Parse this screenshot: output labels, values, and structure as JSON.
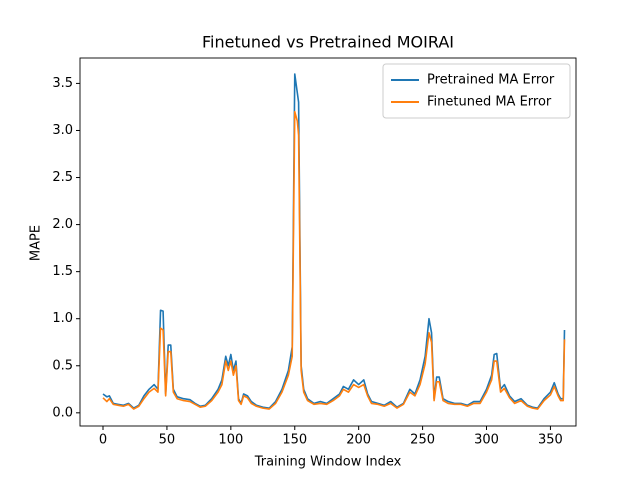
{
  "chart_data": {
    "type": "line",
    "title": "Finetuned vs Pretrained MOIRAI",
    "x_label": "Training Window Index",
    "y_label": "MAPE",
    "x": [
      0,
      3,
      5,
      8,
      12,
      16,
      20,
      24,
      28,
      32,
      36,
      40,
      43,
      45,
      47,
      49,
      51,
      53,
      55,
      58,
      63,
      68,
      72,
      76,
      80,
      85,
      90,
      93,
      96,
      98,
      100,
      102,
      104,
      106,
      108,
      110,
      113,
      116,
      120,
      125,
      130,
      135,
      140,
      145,
      148,
      150,
      152,
      153,
      155,
      157,
      160,
      165,
      170,
      175,
      180,
      185,
      188,
      192,
      196,
      200,
      204,
      207,
      210,
      215,
      220,
      225,
      230,
      235,
      240,
      244,
      248,
      252,
      255,
      257,
      259,
      261,
      263,
      266,
      270,
      275,
      280,
      285,
      290,
      295,
      300,
      304,
      306,
      308,
      311,
      314,
      318,
      322,
      327,
      332,
      336,
      340,
      345,
      350,
      353,
      356,
      358,
      360,
      361
    ],
    "series": [
      {
        "name": "Pretrained MA Error",
        "color": "#1f77b4",
        "values": [
          0.2,
          0.17,
          0.18,
          0.1,
          0.09,
          0.08,
          0.1,
          0.05,
          0.08,
          0.18,
          0.25,
          0.3,
          0.25,
          1.09,
          1.08,
          0.2,
          0.72,
          0.72,
          0.25,
          0.17,
          0.15,
          0.14,
          0.1,
          0.07,
          0.08,
          0.15,
          0.25,
          0.35,
          0.6,
          0.5,
          0.62,
          0.45,
          0.55,
          0.15,
          0.1,
          0.2,
          0.18,
          0.12,
          0.08,
          0.06,
          0.05,
          0.12,
          0.25,
          0.45,
          0.7,
          3.6,
          3.4,
          3.3,
          0.5,
          0.25,
          0.15,
          0.1,
          0.12,
          0.1,
          0.15,
          0.2,
          0.28,
          0.25,
          0.35,
          0.3,
          0.35,
          0.2,
          0.12,
          0.1,
          0.08,
          0.12,
          0.06,
          0.1,
          0.25,
          0.2,
          0.35,
          0.6,
          1.0,
          0.85,
          0.15,
          0.38,
          0.38,
          0.15,
          0.12,
          0.1,
          0.1,
          0.08,
          0.12,
          0.12,
          0.25,
          0.4,
          0.62,
          0.63,
          0.25,
          0.3,
          0.18,
          0.12,
          0.15,
          0.08,
          0.06,
          0.05,
          0.15,
          0.22,
          0.32,
          0.2,
          0.15,
          0.15,
          0.88
        ]
      },
      {
        "name": "Finetuned MA Error",
        "color": "#ff7f0e",
        "values": [
          0.16,
          0.12,
          0.15,
          0.09,
          0.08,
          0.07,
          0.09,
          0.04,
          0.07,
          0.15,
          0.22,
          0.26,
          0.22,
          0.9,
          0.88,
          0.18,
          0.65,
          0.65,
          0.22,
          0.15,
          0.13,
          0.12,
          0.09,
          0.06,
          0.07,
          0.13,
          0.22,
          0.3,
          0.55,
          0.45,
          0.55,
          0.4,
          0.5,
          0.13,
          0.09,
          0.18,
          0.16,
          0.1,
          0.07,
          0.05,
          0.04,
          0.1,
          0.22,
          0.4,
          0.6,
          3.2,
          3.1,
          2.95,
          0.45,
          0.22,
          0.13,
          0.09,
          0.1,
          0.09,
          0.13,
          0.18,
          0.25,
          0.22,
          0.3,
          0.27,
          0.3,
          0.18,
          0.1,
          0.09,
          0.07,
          0.1,
          0.05,
          0.09,
          0.22,
          0.18,
          0.3,
          0.52,
          0.85,
          0.75,
          0.13,
          0.33,
          0.33,
          0.13,
          0.1,
          0.09,
          0.09,
          0.07,
          0.1,
          0.1,
          0.22,
          0.35,
          0.55,
          0.55,
          0.22,
          0.26,
          0.16,
          0.1,
          0.13,
          0.07,
          0.05,
          0.04,
          0.13,
          0.19,
          0.28,
          0.18,
          0.13,
          0.13,
          0.78
        ]
      }
    ],
    "xlim": [
      -18,
      370
    ],
    "ylim": [
      -0.14,
      3.77
    ],
    "xticks": [
      0,
      50,
      100,
      150,
      200,
      250,
      300,
      350
    ],
    "yticks": [
      {
        "value": 0,
        "label": "0.0"
      },
      0.5,
      {
        "value": 1,
        "label": "1.0"
      },
      1.5,
      {
        "value": 2,
        "label": "2.0"
      },
      2.5,
      {
        "value": 3,
        "label": "3.0"
      },
      3.5
    ],
    "legend": "upper right",
    "grid": false
  }
}
